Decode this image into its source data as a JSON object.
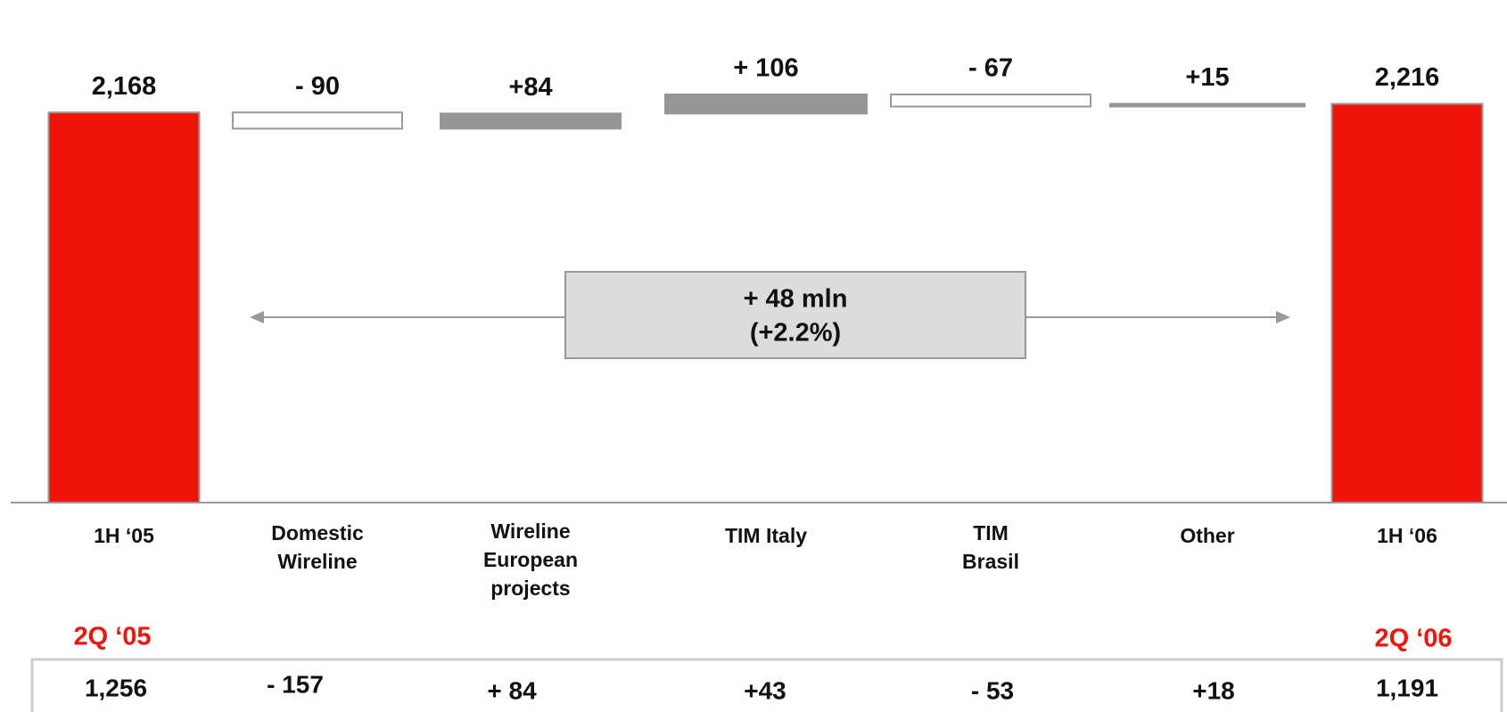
{
  "chart_data": {
    "type": "waterfall",
    "categories": [
      "1H ‘05",
      "Domestic Wireline",
      "Wireline European projects",
      "TIM Italy",
      "TIM Brasil",
      "Other",
      "1H ‘06"
    ],
    "values": [
      2168,
      -90,
      84,
      106,
      -67,
      15,
      2216
    ],
    "value_labels": [
      "2,168",
      "- 90",
      "+84",
      "+ 106",
      "- 67",
      "+15",
      "2,216"
    ],
    "total_color": "#f0140a",
    "increase_color": "#969696",
    "decrease_color": "#ffffff",
    "annotation": [
      "+ 48 mln",
      "(+2.2%)"
    ]
  },
  "quarter_row": {
    "start_label": "2Q ‘05",
    "end_label": "2Q ‘06",
    "cells": [
      "1,256",
      "- 157",
      "+ 84",
      "+43",
      "- 53",
      "+18",
      "1,191"
    ]
  }
}
